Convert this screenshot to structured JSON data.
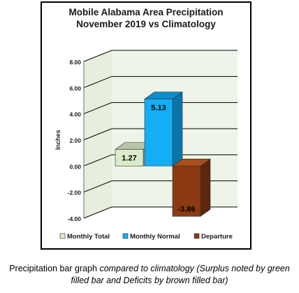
{
  "chart_data": {
    "type": "bar",
    "title_lines": [
      "Mobile Alabama Area Precipitation",
      "November 2019 vs Climatology"
    ],
    "ylabel": "Inches",
    "ylim": [
      -4.0,
      8.0
    ],
    "yticks": [
      "8.00",
      "6.00",
      "4.00",
      "2.00",
      "0.00",
      "-2.00",
      "-4.00"
    ],
    "grid": true,
    "legend_position": "bottom",
    "series": [
      {
        "name": "Monthly Total",
        "value": 1.27,
        "label": "1.27",
        "color": "#d9ecc9",
        "top_color": "#b8c3a8",
        "side_color": "#9aa58c"
      },
      {
        "name": "Monthly Normal",
        "value": 5.13,
        "label": "5.13",
        "color": "#13aef5",
        "top_color": "#0d8ed0",
        "side_color": "#0a74ad"
      },
      {
        "name": "Departure",
        "value": -3.86,
        "label": "-3.86",
        "color": "#8b3a12",
        "top_color": "#a6501e",
        "side_color": "#5e260b"
      }
    ]
  },
  "caption": {
    "normal_part": "Precipitation bar graph",
    "italic_part": " compared to climatology (Surplus noted by green filled bar and Deficits by brown filled bar)"
  }
}
